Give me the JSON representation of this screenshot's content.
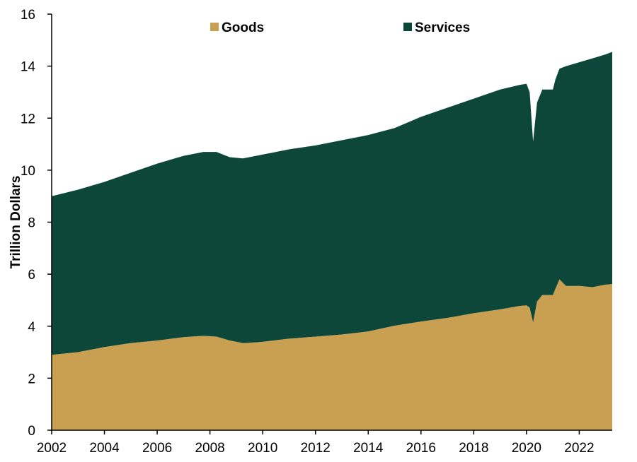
{
  "chart_data": {
    "type": "area",
    "stacked": true,
    "title": "",
    "xlabel": "",
    "ylabel": "Trillion Dollars",
    "xlim": [
      2002,
      2023.25
    ],
    "ylim": [
      0,
      16
    ],
    "x_ticks": [
      2002,
      2004,
      2006,
      2008,
      2010,
      2012,
      2014,
      2016,
      2018,
      2020,
      2022
    ],
    "x_tick_labels": [
      "2002",
      "2004",
      "2006",
      "2008",
      "2010",
      "2012",
      "2014",
      "2016",
      "2018",
      "2020",
      "2022"
    ],
    "y_ticks": [
      0,
      2,
      4,
      6,
      8,
      10,
      12,
      14,
      16
    ],
    "y_tick_labels": [
      "0",
      "2",
      "4",
      "6",
      "8",
      "10",
      "12",
      "14",
      "16"
    ],
    "grid": false,
    "legend_position": "top-center",
    "x": [
      2002.0,
      2003.0,
      2004.0,
      2005.0,
      2006.0,
      2007.0,
      2007.75,
      2008.25,
      2008.75,
      2009.25,
      2009.75,
      2010.0,
      2011.0,
      2012.0,
      2013.0,
      2014.0,
      2015.0,
      2016.0,
      2017.0,
      2018.0,
      2019.0,
      2019.75,
      2020.0,
      2020.12,
      2020.25,
      2020.4,
      2020.6,
      2021.0,
      2021.1,
      2021.25,
      2021.5,
      2022.0,
      2022.5,
      2023.0,
      2023.25
    ],
    "series": [
      {
        "name": "Goods",
        "color": "#C9A052",
        "values": [
          2.9,
          3.0,
          3.2,
          3.35,
          3.45,
          3.58,
          3.63,
          3.6,
          3.45,
          3.35,
          3.38,
          3.4,
          3.52,
          3.6,
          3.68,
          3.8,
          4.02,
          4.18,
          4.32,
          4.5,
          4.65,
          4.78,
          4.8,
          4.72,
          4.15,
          4.95,
          5.2,
          5.2,
          5.45,
          5.8,
          5.55,
          5.55,
          5.5,
          5.6,
          5.62
        ]
      },
      {
        "name": "Services",
        "color": "#0D4739",
        "values": [
          6.1,
          6.25,
          6.35,
          6.55,
          6.8,
          6.97,
          7.07,
          7.1,
          7.05,
          7.1,
          7.17,
          7.2,
          7.28,
          7.35,
          7.47,
          7.55,
          7.6,
          7.87,
          8.08,
          8.25,
          8.45,
          8.5,
          8.52,
          8.28,
          6.95,
          7.65,
          7.9,
          7.9,
          8.05,
          8.1,
          8.45,
          8.6,
          8.8,
          8.85,
          8.93
        ]
      }
    ]
  }
}
